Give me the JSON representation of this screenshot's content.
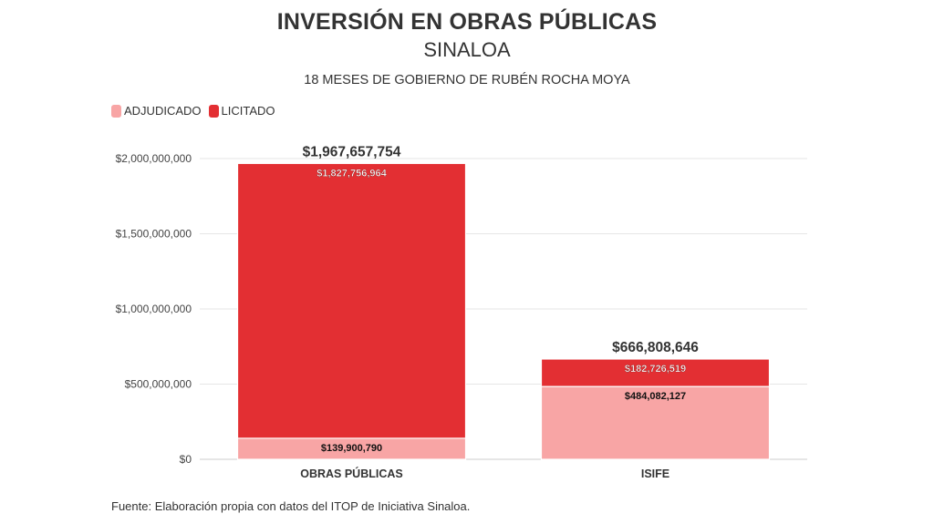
{
  "title": "INVERSIÓN EN OBRAS PÚBLICAS",
  "subtitle": "SINALOA",
  "subtitle2": "18 MESES DE GOBIERNO DE RUBÉN ROCHA MOYA",
  "source": "Fuente: Elaboración propia con datos del ITOP de Iniciativa Sinaloa.",
  "colors": {
    "adjudicado": "#f8a5a5",
    "licitado": "#e32f33"
  },
  "chart_data": {
    "type": "bar",
    "stacked": true,
    "categories": [
      "OBRAS PÚBLICAS",
      "ISIFE"
    ],
    "series": [
      {
        "name": "ADJUDICADO",
        "values": [
          139900790,
          484082127
        ],
        "labels": [
          "$139,900,790",
          "$484,082,127"
        ]
      },
      {
        "name": "LICITADO",
        "values": [
          1827756964,
          182726519
        ],
        "labels": [
          "$1,827,756,964",
          "$182,726,519"
        ]
      }
    ],
    "totals": [
      1967657754,
      666808646
    ],
    "total_labels": [
      "$1,967,657,754",
      "$666,808,646"
    ],
    "ylim": [
      0,
      2000000000
    ],
    "yticks": [
      0,
      500000000,
      1000000000,
      1500000000,
      2000000000
    ],
    "ytick_labels": [
      "$0",
      "$500,000,000",
      "$1,000,000,000",
      "$1,500,000,000",
      "$2,000,000,000"
    ],
    "legend_position": "top-left",
    "grid": true
  }
}
